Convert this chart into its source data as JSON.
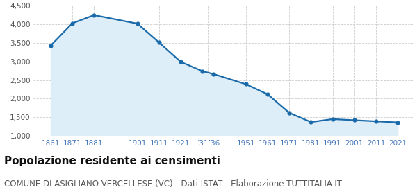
{
  "years": [
    1861,
    1871,
    1881,
    1901,
    1911,
    1921,
    1931,
    1936,
    1951,
    1961,
    1971,
    1981,
    1991,
    2001,
    2011,
    2021
  ],
  "population": [
    3430,
    4030,
    4250,
    4020,
    3510,
    2990,
    2740,
    2665,
    2390,
    2120,
    1620,
    1370,
    1450,
    1420,
    1390,
    1360
  ],
  "line_color": "#1a6aaa",
  "fill_color": "#ddeef8",
  "marker_color": "#1a6aaa",
  "background_color": "#ffffff",
  "grid_color": "#cccccc",
  "ylim": [
    1000,
    4500
  ],
  "yticks": [
    1000,
    1500,
    2000,
    2500,
    3000,
    3500,
    4000,
    4500
  ],
  "title": "Popolazione residente ai censimenti",
  "subtitle": "COMUNE DI ASIGLIANO VERCELLESE (VC) - Dati ISTAT - Elaborazione TUTTITALIA.IT",
  "title_fontsize": 11,
  "subtitle_fontsize": 8.5,
  "tick_label_color": "#4477bb",
  "xlim_left": 1853,
  "xlim_right": 2028
}
